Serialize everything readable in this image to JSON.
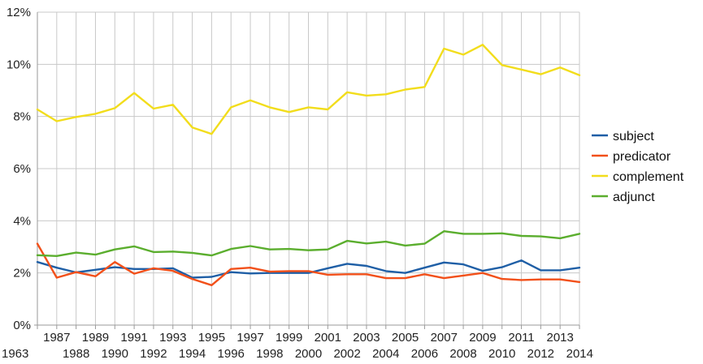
{
  "chart_data": {
    "type": "line",
    "title": "",
    "xlabel": "",
    "ylabel": "",
    "x": [
      "1963",
      "1987",
      "1988",
      "1989",
      "1990",
      "1991",
      "1992",
      "1993",
      "1994",
      "1995",
      "1996",
      "1997",
      "1998",
      "1999",
      "2000",
      "2001",
      "2002",
      "2003",
      "2004",
      "2005",
      "2006",
      "2007",
      "2008",
      "2009",
      "2010",
      "2011",
      "2012",
      "2013",
      "2014"
    ],
    "ylim": [
      0,
      12
    ],
    "y_ticks": [
      "0%",
      "2%",
      "4%",
      "6%",
      "8%",
      "10%",
      "12%"
    ],
    "y_tick_values": [
      0,
      2,
      4,
      6,
      8,
      10,
      12
    ],
    "grid": true,
    "legend_position": "right",
    "series": [
      {
        "name": "subject",
        "color": "#1f5fa6",
        "values": [
          2.42,
          2.2,
          2.02,
          2.12,
          2.22,
          2.15,
          2.15,
          2.18,
          1.82,
          1.85,
          2.03,
          1.98,
          2.0,
          2.0,
          2.0,
          2.18,
          2.35,
          2.27,
          2.07,
          2.0,
          2.2,
          2.4,
          2.33,
          2.08,
          2.22,
          2.48,
          2.1,
          2.1,
          2.2
        ]
      },
      {
        "name": "predicator",
        "color": "#f2501a",
        "values": [
          3.12,
          1.82,
          2.03,
          1.87,
          2.42,
          1.97,
          2.18,
          2.08,
          1.77,
          1.53,
          2.15,
          2.2,
          2.05,
          2.07,
          2.07,
          1.93,
          1.95,
          1.95,
          1.8,
          1.8,
          1.95,
          1.8,
          1.9,
          2.0,
          1.77,
          1.73,
          1.75,
          1.75,
          1.65
        ]
      },
      {
        "name": "complement",
        "color": "#f2dd1c",
        "values": [
          8.27,
          7.82,
          7.98,
          8.1,
          8.32,
          8.9,
          8.3,
          8.45,
          7.58,
          7.33,
          8.35,
          8.62,
          8.35,
          8.17,
          8.35,
          8.27,
          8.93,
          8.8,
          8.85,
          9.03,
          9.13,
          10.6,
          10.37,
          10.75,
          9.97,
          9.8,
          9.62,
          9.88,
          9.58
        ]
      },
      {
        "name": "adjunct",
        "color": "#5bae2e",
        "values": [
          2.68,
          2.65,
          2.78,
          2.7,
          2.9,
          3.02,
          2.8,
          2.82,
          2.77,
          2.67,
          2.92,
          3.03,
          2.9,
          2.92,
          2.87,
          2.9,
          3.23,
          3.13,
          3.2,
          3.05,
          3.12,
          3.6,
          3.5,
          3.5,
          3.52,
          3.42,
          3.4,
          3.33,
          3.5
        ]
      }
    ]
  }
}
